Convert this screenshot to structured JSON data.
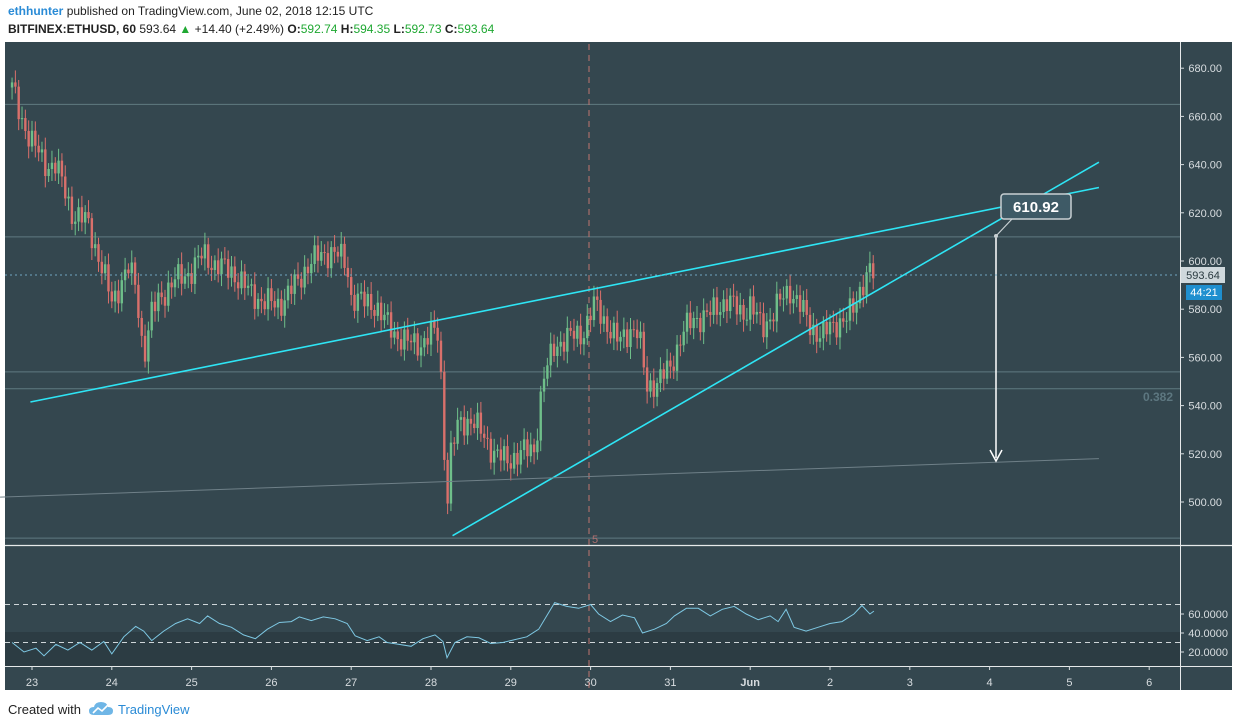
{
  "header": {
    "author": "ethhunter",
    "published": "published on TradingView.com, June 02, 2018 12:15 UTC",
    "symbol": "BITFINEX:ETHUSD, 60",
    "last": "593.64",
    "change_arrow": "▲",
    "change": "+14.40 (+2.49%)",
    "o_label": "O:",
    "o_value": "592.74",
    "h_label": "H:",
    "h_value": "594.35",
    "l_label": "L:",
    "l_value": "592.73",
    "c_label": "C:",
    "c_value": "593.64"
  },
  "footer": {
    "created_with": "Created with",
    "brand": "TradingView",
    "logo_icon": "tradingview-cloud-icon"
  },
  "colors": {
    "background": "#34474f",
    "up": "#6fbf8a",
    "down": "#d9706b",
    "trendline": "#2ee5f5",
    "rsi": "#7ec8e3",
    "axis_text": "#d8dde0"
  },
  "chart_data": [
    {
      "type": "candlestick",
      "title": "",
      "x_ticks": [
        "23",
        "24",
        "25",
        "26",
        "27",
        "28",
        "29",
        "30",
        "31",
        "Jun",
        "2",
        "3",
        "4",
        "5",
        "6"
      ],
      "y_ticks": [
        "500.00",
        "520.00",
        "540.00",
        "560.00",
        "580.00",
        "600.00",
        "620.00",
        "640.00",
        "660.00",
        "680.00"
      ],
      "ylim": [
        483,
        690
      ],
      "price_label": "593.64",
      "countdown_label": "44:21",
      "target_label": "610.92",
      "fib_label": "0.382",
      "vertical_marker_label": "5",
      "path_close": [
        [
          22.75,
          672
        ],
        [
          22.85,
          660
        ],
        [
          23.0,
          650
        ],
        [
          23.15,
          640
        ],
        [
          23.3,
          640
        ],
        [
          23.5,
          620
        ],
        [
          23.7,
          616
        ],
        [
          23.85,
          600
        ],
        [
          24.0,
          583
        ],
        [
          24.1,
          590
        ],
        [
          24.2,
          597
        ],
        [
          24.3,
          590
        ],
        [
          24.4,
          560
        ],
        [
          24.5,
          578
        ],
        [
          24.6,
          585
        ],
        [
          24.8,
          592
        ],
        [
          25.0,
          596
        ],
        [
          25.15,
          603
        ],
        [
          25.3,
          598
        ],
        [
          25.5,
          596
        ],
        [
          25.7,
          588
        ],
        [
          25.9,
          583
        ],
        [
          26.1,
          582
        ],
        [
          26.3,
          590
        ],
        [
          26.45,
          598
        ],
        [
          26.6,
          602
        ],
        [
          26.75,
          604
        ],
        [
          26.85,
          602
        ],
        [
          26.95,
          598
        ],
        [
          27.0,
          585
        ],
        [
          27.15,
          583
        ],
        [
          27.3,
          582
        ],
        [
          27.4,
          576
        ],
        [
          27.55,
          570
        ],
        [
          27.7,
          566
        ],
        [
          27.9,
          566
        ],
        [
          28.0,
          570
        ],
        [
          28.1,
          570
        ],
        [
          28.2,
          498
        ],
        [
          28.25,
          520
        ],
        [
          28.35,
          533
        ],
        [
          28.5,
          534
        ],
        [
          28.65,
          528
        ],
        [
          28.8,
          520
        ],
        [
          28.95,
          517
        ],
        [
          29.1,
          520
        ],
        [
          29.3,
          522
        ],
        [
          29.4,
          550
        ],
        [
          29.55,
          565
        ],
        [
          29.7,
          568
        ],
        [
          29.9,
          570
        ],
        [
          30.05,
          582
        ],
        [
          30.2,
          574
        ],
        [
          30.35,
          566
        ],
        [
          30.5,
          572
        ],
        [
          30.6,
          570
        ],
        [
          30.7,
          548
        ],
        [
          30.85,
          550
        ],
        [
          31.0,
          556
        ],
        [
          31.15,
          570
        ],
        [
          31.3,
          576
        ],
        [
          31.5,
          578
        ],
        [
          31.7,
          584
        ],
        [
          31.9,
          578
        ],
        [
          32.0,
          582
        ],
        [
          32.15,
          572
        ],
        [
          32.35,
          582
        ],
        [
          32.5,
          588
        ],
        [
          32.6,
          583
        ],
        [
          32.75,
          573
        ],
        [
          32.9,
          569
        ],
        [
          33.1,
          575
        ],
        [
          33.2,
          576
        ],
        [
          33.3,
          580
        ],
        [
          33.4,
          591
        ],
        [
          33.5,
          596
        ],
        [
          33.55,
          593.64
        ]
      ]
    },
    {
      "type": "line",
      "title": "",
      "y_ticks": [
        "20.0000",
        "40.0000",
        "60.0000"
      ],
      "ylim": [
        12,
        72
      ],
      "levels": [
        70,
        30
      ],
      "path": [
        [
          22.75,
          30
        ],
        [
          22.9,
          20
        ],
        [
          23.05,
          24
        ],
        [
          23.15,
          16
        ],
        [
          23.3,
          28
        ],
        [
          23.45,
          22
        ],
        [
          23.6,
          30
        ],
        [
          23.75,
          22
        ],
        [
          23.9,
          31
        ],
        [
          24.0,
          18
        ],
        [
          24.15,
          36
        ],
        [
          24.3,
          47
        ],
        [
          24.4,
          42
        ],
        [
          24.5,
          32
        ],
        [
          24.65,
          42
        ],
        [
          24.8,
          50
        ],
        [
          24.95,
          55
        ],
        [
          25.1,
          50
        ],
        [
          25.2,
          58
        ],
        [
          25.35,
          50
        ],
        [
          25.5,
          46
        ],
        [
          25.65,
          38
        ],
        [
          25.8,
          34
        ],
        [
          25.95,
          44
        ],
        [
          26.1,
          51
        ],
        [
          26.25,
          52
        ],
        [
          26.35,
          57
        ],
        [
          26.5,
          53
        ],
        [
          26.65,
          57
        ],
        [
          26.8,
          55
        ],
        [
          26.95,
          50
        ],
        [
          27.05,
          37
        ],
        [
          27.2,
          32
        ],
        [
          27.35,
          36
        ],
        [
          27.45,
          30
        ],
        [
          27.6,
          28
        ],
        [
          27.75,
          26
        ],
        [
          27.9,
          34
        ],
        [
          28.05,
          38
        ],
        [
          28.15,
          31
        ],
        [
          28.2,
          14
        ],
        [
          28.3,
          30
        ],
        [
          28.45,
          36
        ],
        [
          28.6,
          35
        ],
        [
          28.75,
          29
        ],
        [
          28.9,
          30
        ],
        [
          29.05,
          33
        ],
        [
          29.2,
          36
        ],
        [
          29.35,
          44
        ],
        [
          29.45,
          58
        ],
        [
          29.55,
          72
        ],
        [
          29.7,
          68
        ],
        [
          29.85,
          66
        ],
        [
          30.0,
          70
        ],
        [
          30.1,
          60
        ],
        [
          30.25,
          52
        ],
        [
          30.4,
          59
        ],
        [
          30.55,
          56
        ],
        [
          30.65,
          40
        ],
        [
          30.8,
          44
        ],
        [
          30.95,
          50
        ],
        [
          31.05,
          58
        ],
        [
          31.2,
          66
        ],
        [
          31.35,
          66
        ],
        [
          31.5,
          58
        ],
        [
          31.65,
          65
        ],
        [
          31.8,
          68
        ],
        [
          31.95,
          60
        ],
        [
          32.1,
          54
        ],
        [
          32.25,
          58
        ],
        [
          32.35,
          52
        ],
        [
          32.45,
          65
        ],
        [
          32.55,
          46
        ],
        [
          32.7,
          42
        ],
        [
          32.85,
          46
        ],
        [
          33.0,
          50
        ],
        [
          33.15,
          52
        ],
        [
          33.3,
          60
        ],
        [
          33.4,
          69
        ],
        [
          33.5,
          60
        ],
        [
          33.55,
          63
        ]
      ]
    }
  ]
}
